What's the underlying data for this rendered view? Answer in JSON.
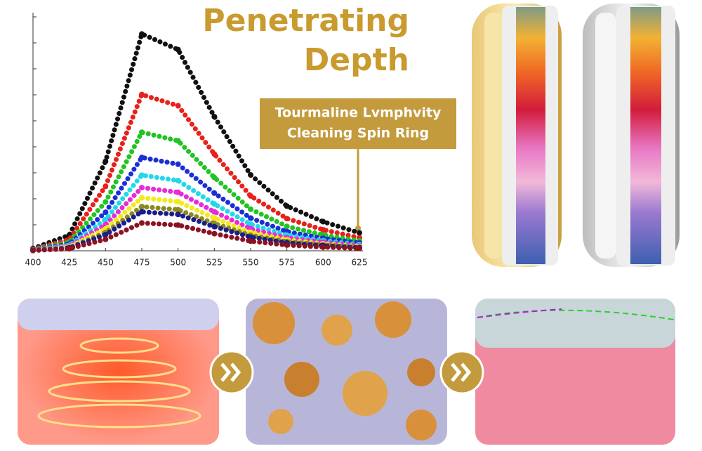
{
  "header": {
    "title_lines": [
      "Penetrating",
      "Depth"
    ]
  },
  "callout": {
    "lines": [
      "Tourmaline Lvmphvity",
      "Cleaning Spin Ring"
    ]
  },
  "chart_data": {
    "type": "line",
    "x": [
      400,
      425,
      450,
      475,
      500,
      525,
      550,
      575,
      600,
      625
    ],
    "xlim": [
      400,
      625
    ],
    "xticks": [
      400,
      425,
      450,
      475,
      500,
      525,
      550,
      575,
      600,
      625
    ],
    "ylim": [
      0,
      9
    ],
    "yticks": [
      1,
      2,
      3,
      4,
      5,
      6,
      7,
      8,
      9
    ],
    "series": [
      {
        "color": "#111111",
        "values": [
          0.09,
          0.6,
          3.44,
          8.34,
          7.74,
          5.16,
          2.92,
          1.72,
          1.12,
          0.69
        ]
      },
      {
        "color": "#e8201c",
        "values": [
          0.06,
          0.43,
          2.48,
          6.01,
          5.58,
          3.72,
          2.11,
          1.24,
          0.81,
          0.5
        ]
      },
      {
        "color": "#22c322",
        "values": [
          0.05,
          0.33,
          1.88,
          4.56,
          4.23,
          2.82,
          1.6,
          0.94,
          0.61,
          0.38
        ]
      },
      {
        "color": "#1a2fd6",
        "values": [
          0.04,
          0.26,
          1.48,
          3.59,
          3.33,
          2.22,
          1.26,
          0.74,
          0.48,
          0.3
        ]
      },
      {
        "color": "#22d8e8",
        "values": [
          0.03,
          0.21,
          1.2,
          2.91,
          2.7,
          1.8,
          1.02,
          0.6,
          0.39,
          0.24
        ]
      },
      {
        "color": "#e82ad8",
        "values": [
          0.03,
          0.18,
          1.0,
          2.43,
          2.25,
          1.5,
          0.85,
          0.5,
          0.33,
          0.2
        ]
      },
      {
        "color": "#f2ea1a",
        "values": [
          0.02,
          0.15,
          0.84,
          2.04,
          1.89,
          1.26,
          0.71,
          0.42,
          0.27,
          0.17
        ]
      },
      {
        "color": "#8a8a1e",
        "values": [
          0.02,
          0.12,
          0.7,
          1.7,
          1.58,
          1.05,
          0.6,
          0.35,
          0.23,
          0.14
        ]
      },
      {
        "color": "#1c1c8a",
        "values": [
          0.02,
          0.11,
          0.62,
          1.5,
          1.4,
          0.93,
          0.53,
          0.31,
          0.2,
          0.12
        ]
      },
      {
        "color": "#8a1220",
        "values": [
          0.01,
          0.08,
          0.44,
          1.07,
          0.99,
          0.66,
          0.37,
          0.22,
          0.14,
          0.09
        ]
      }
    ]
  }
}
